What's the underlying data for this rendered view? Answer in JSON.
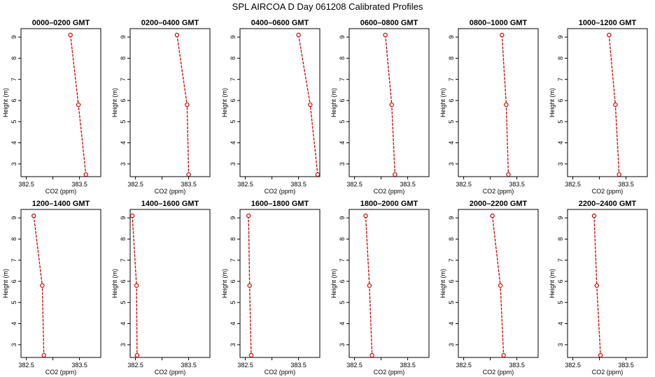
{
  "figure_title": "SPL AIRCOA D  Day 061208  Calibrated Profiles",
  "chart_data": [
    {
      "type": "line",
      "title": "0000–0200 GMT",
      "xlabel": "CO2 (ppm)",
      "ylabel": "Height (m)",
      "xlim": [
        382.4,
        383.9
      ],
      "ylim": [
        2.4,
        9.4
      ],
      "xticks": [
        382.5,
        383.5
      ],
      "yticks": [
        3,
        4,
        5,
        6,
        7,
        8,
        9
      ],
      "series": [
        {
          "color": "#d40000",
          "points": [
            [
              383.33,
              9.1
            ],
            [
              383.48,
              5.8
            ],
            [
              383.62,
              2.5
            ]
          ]
        }
      ]
    },
    {
      "type": "line",
      "title": "0200–0400 GMT",
      "xlabel": "CO2 (ppm)",
      "ylabel": "Height (m)",
      "xlim": [
        382.4,
        383.9
      ],
      "ylim": [
        2.4,
        9.4
      ],
      "xticks": [
        382.5,
        383.5
      ],
      "yticks": [
        3,
        4,
        5,
        6,
        7,
        8,
        9
      ],
      "series": [
        {
          "color": "#d40000",
          "points": [
            [
              383.28,
              9.1
            ],
            [
              383.47,
              5.8
            ],
            [
              383.5,
              2.5
            ]
          ]
        }
      ]
    },
    {
      "type": "line",
      "title": "0400–0600 GMT",
      "xlabel": "CO2 (ppm)",
      "ylabel": "Height (m)",
      "xlim": [
        382.4,
        383.9
      ],
      "ylim": [
        2.4,
        9.4
      ],
      "xticks": [
        382.5,
        383.5
      ],
      "yticks": [
        3,
        4,
        5,
        6,
        7,
        8,
        9
      ],
      "series": [
        {
          "color": "#d40000",
          "points": [
            [
              383.5,
              9.1
            ],
            [
              383.72,
              5.8
            ],
            [
              383.86,
              2.5
            ]
          ]
        }
      ]
    },
    {
      "type": "line",
      "title": "0600–0800 GMT",
      "xlabel": "CO2 (ppm)",
      "ylabel": "Height (m)",
      "xlim": [
        382.4,
        383.9
      ],
      "ylim": [
        2.4,
        9.4
      ],
      "xticks": [
        382.5,
        383.5
      ],
      "yticks": [
        3,
        4,
        5,
        6,
        7,
        8,
        9
      ],
      "series": [
        {
          "color": "#d40000",
          "points": [
            [
              383.08,
              9.1
            ],
            [
              383.2,
              5.8
            ],
            [
              383.26,
              2.5
            ]
          ]
        }
      ]
    },
    {
      "type": "line",
      "title": "0800–1000 GMT",
      "xlabel": "CO2 (ppm)",
      "ylabel": "Height (m)",
      "xlim": [
        382.4,
        383.9
      ],
      "ylim": [
        2.4,
        9.4
      ],
      "xticks": [
        382.5,
        383.5
      ],
      "yticks": [
        3,
        4,
        5,
        6,
        7,
        8,
        9
      ],
      "series": [
        {
          "color": "#d40000",
          "points": [
            [
              383.22,
              9.1
            ],
            [
              383.3,
              5.8
            ],
            [
              383.34,
              2.5
            ]
          ]
        }
      ]
    },
    {
      "type": "line",
      "title": "1000–1200 GMT",
      "xlabel": "CO2 (ppm)",
      "ylabel": "Height (m)",
      "xlim": [
        382.4,
        383.9
      ],
      "ylim": [
        2.4,
        9.4
      ],
      "xticks": [
        382.5,
        383.5
      ],
      "yticks": [
        3,
        4,
        5,
        6,
        7,
        8,
        9
      ],
      "series": [
        {
          "color": "#d40000",
          "points": [
            [
              383.18,
              9.1
            ],
            [
              383.3,
              5.8
            ],
            [
              383.37,
              2.5
            ]
          ]
        }
      ]
    },
    {
      "type": "line",
      "title": "1200–1400 GMT",
      "xlabel": "CO2 (ppm)",
      "ylabel": "Height (m)",
      "xlim": [
        382.4,
        383.9
      ],
      "ylim": [
        2.4,
        9.4
      ],
      "xticks": [
        382.5,
        383.5
      ],
      "yticks": [
        3,
        4,
        5,
        6,
        7,
        8,
        9
      ],
      "series": [
        {
          "color": "#d40000",
          "points": [
            [
              382.64,
              9.1
            ],
            [
              382.8,
              5.8
            ],
            [
              382.83,
              2.5
            ]
          ]
        }
      ]
    },
    {
      "type": "line",
      "title": "1400–1600 GMT",
      "xlabel": "CO2 (ppm)",
      "ylabel": "Height (m)",
      "xlim": [
        382.4,
        383.9
      ],
      "ylim": [
        2.4,
        9.4
      ],
      "xticks": [
        382.5,
        383.5
      ],
      "yticks": [
        3,
        4,
        5,
        6,
        7,
        8,
        9
      ],
      "series": [
        {
          "color": "#d40000",
          "points": [
            [
              382.44,
              9.1
            ],
            [
              382.52,
              5.8
            ],
            [
              382.53,
              2.5
            ]
          ]
        }
      ]
    },
    {
      "type": "line",
      "title": "1600–1800 GMT",
      "xlabel": "CO2 (ppm)",
      "ylabel": "Height (m)",
      "xlim": [
        382.4,
        383.9
      ],
      "ylim": [
        2.4,
        9.4
      ],
      "xticks": [
        382.5,
        383.5
      ],
      "yticks": [
        3,
        4,
        5,
        6,
        7,
        8,
        9
      ],
      "series": [
        {
          "color": "#d40000",
          "points": [
            [
              382.56,
              9.1
            ],
            [
              382.58,
              5.8
            ],
            [
              382.61,
              2.5
            ]
          ]
        }
      ]
    },
    {
      "type": "line",
      "title": "1800–2000 GMT",
      "xlabel": "CO2 (ppm)",
      "ylabel": "Height (m)",
      "xlim": [
        382.4,
        383.9
      ],
      "ylim": [
        2.4,
        9.4
      ],
      "xticks": [
        382.5,
        383.5
      ],
      "yticks": [
        3,
        4,
        5,
        6,
        7,
        8,
        9
      ],
      "series": [
        {
          "color": "#d40000",
          "points": [
            [
              382.71,
              9.1
            ],
            [
              382.78,
              5.8
            ],
            [
              382.83,
              2.5
            ]
          ]
        }
      ]
    },
    {
      "type": "line",
      "title": "2000–2200 GMT",
      "xlabel": "CO2 (ppm)",
      "ylabel": "Height (m)",
      "xlim": [
        382.4,
        383.9
      ],
      "ylim": [
        2.4,
        9.4
      ],
      "xticks": [
        382.5,
        383.5
      ],
      "yticks": [
        3,
        4,
        5,
        6,
        7,
        8,
        9
      ],
      "series": [
        {
          "color": "#d40000",
          "points": [
            [
              383.04,
              9.1
            ],
            [
              383.19,
              5.8
            ],
            [
              383.25,
              2.5
            ]
          ]
        }
      ]
    },
    {
      "type": "line",
      "title": "2200–2400 GMT",
      "xlabel": "CO2 (ppm)",
      "ylabel": "Height (m)",
      "xlim": [
        382.4,
        383.9
      ],
      "ylim": [
        2.4,
        9.4
      ],
      "xticks": [
        382.5,
        383.5
      ],
      "yticks": [
        3,
        4,
        5,
        6,
        7,
        8,
        9
      ],
      "series": [
        {
          "color": "#d40000",
          "points": [
            [
              382.9,
              9.1
            ],
            [
              382.95,
              5.8
            ],
            [
              383.02,
              2.5
            ]
          ]
        }
      ]
    }
  ]
}
